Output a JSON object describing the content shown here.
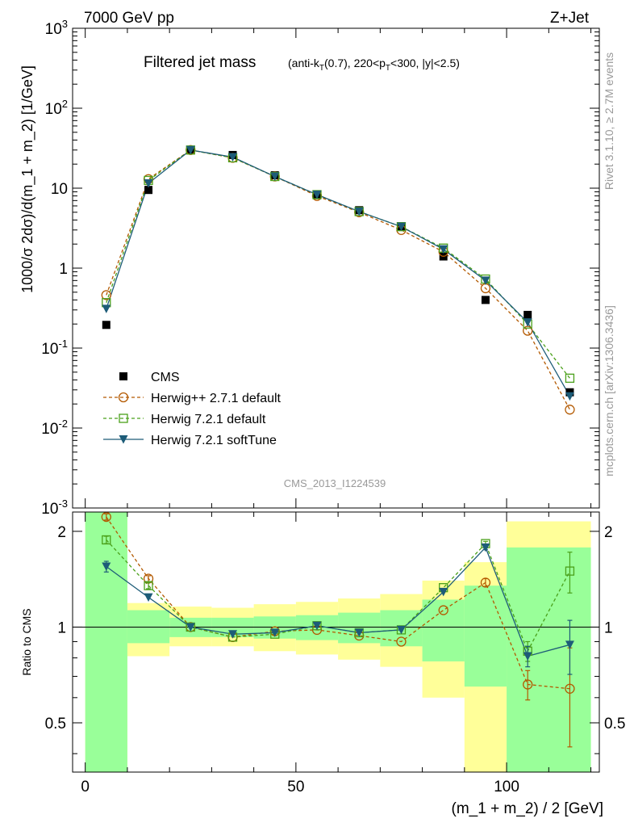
{
  "header": {
    "left": "7000 GeV pp",
    "right": "Z+Jet"
  },
  "title_main": "Filtered jet mass",
  "title_sub_parts": [
    "(anti-k",
    "T",
    "(0.7), 220<p",
    "T",
    "<300, |y|<2.5)"
  ],
  "side_text": {
    "rivet": "Rivet 3.1.10, ≥ 2.7M events",
    "mcplots": "mcplots.cern.ch [arXiv:1306.3436]"
  },
  "analysis_tag": "CMS_2013_I1224539",
  "xlabel": "(m_1 + m_2) / 2 [GeV]",
  "ylabel_top": "1000/σ 2dσ)/d(m_1 + m_2) [1/GeV]",
  "ylabel_bottom": "Ratio to CMS",
  "colors": {
    "cms": "#000000",
    "herwigpp": "#b35900",
    "herwig721": "#4aa01a",
    "softtune": "#1d5c78",
    "band_green": "#99ff99",
    "band_yellow": "#ffff99"
  },
  "top_ticks": {
    "y": [
      "10^3",
      "10^2",
      "10",
      "1",
      "10^-1",
      "10^-2",
      "10^-3"
    ]
  },
  "bottom_ticks": {
    "x": [
      "0",
      "50",
      "100"
    ],
    "y": [
      "2",
      "1",
      "0.5"
    ]
  },
  "chart_data": {
    "type": "line",
    "x": [
      5,
      15,
      25,
      35,
      45,
      55,
      65,
      75,
      85,
      95,
      105,
      115
    ],
    "xlim": [
      -3,
      122
    ],
    "ylim": [
      0.001,
      1000
    ],
    "yscale": "log",
    "legend_position": "bottom-left",
    "series": [
      {
        "name": "CMS",
        "style": "markers",
        "values": [
          0.195,
          9.5,
          30.0,
          26.0,
          14.5,
          8.2,
          5.3,
          3.35,
          1.4,
          0.4,
          0.26,
          0.028
        ]
      },
      {
        "name": "Herwig++ 2.7.1 default",
        "style": "dashed-circle",
        "values": [
          0.46,
          13.0,
          30.0,
          24.0,
          14.0,
          8.0,
          5.0,
          3.0,
          1.6,
          0.56,
          0.165,
          0.017
        ]
      },
      {
        "name": "Herwig 7.2.1 default",
        "style": "dashed-square",
        "values": [
          0.37,
          12.5,
          30.0,
          24.0,
          14.0,
          8.3,
          5.1,
          3.3,
          1.78,
          0.73,
          0.2,
          0.042
        ]
      },
      {
        "name": "Herwig 7.2.1 softTune",
        "style": "solid-triangle",
        "values": [
          0.31,
          11.5,
          30.0,
          24.5,
          14.0,
          8.3,
          5.1,
          3.3,
          1.72,
          0.7,
          0.21,
          0.025
        ]
      }
    ],
    "ratio": {
      "ylabel": "Ratio to CMS",
      "ylim": [
        0.35,
        2.3
      ],
      "yscale": "log",
      "series": [
        {
          "name": "Herwig++ 2.7.1 default",
          "values": [
            2.22,
            1.42,
            1.0,
            0.93,
            0.97,
            0.98,
            0.94,
            0.9,
            1.13,
            1.38,
            0.66,
            0.64
          ],
          "errors": [
            0.05,
            0.03,
            0.01,
            0.01,
            0.01,
            0.01,
            0.01,
            0.01,
            0.02,
            0.04,
            0.07,
            0.22
          ]
        },
        {
          "name": "Herwig 7.2.1 default",
          "values": [
            1.88,
            1.35,
            1.0,
            0.93,
            0.95,
            1.01,
            0.96,
            0.98,
            1.33,
            1.83,
            0.84,
            1.5
          ],
          "errors": [
            0.05,
            0.03,
            0.01,
            0.01,
            0.01,
            0.01,
            0.01,
            0.01,
            0.02,
            0.03,
            0.06,
            0.22
          ]
        },
        {
          "name": "Herwig 7.2.1 softTune",
          "values": [
            1.55,
            1.24,
            1.0,
            0.95,
            0.96,
            1.01,
            0.96,
            0.98,
            1.29,
            1.78,
            0.81,
            0.88
          ],
          "errors": [
            0.06,
            0.02,
            0.01,
            0.01,
            0.01,
            0.01,
            0.01,
            0.01,
            0.02,
            0.03,
            0.06,
            0.17
          ]
        }
      ],
      "bands": [
        {
          "x": [
            0,
            10
          ],
          "green": [
            0.35,
            2.3
          ],
          "yellow": [
            0.35,
            2.3
          ]
        },
        {
          "x": [
            10,
            20
          ],
          "green": [
            0.89,
            1.13
          ],
          "yellow": [
            0.81,
            1.19
          ]
        },
        {
          "x": [
            20,
            30
          ],
          "green": [
            0.93,
            1.07
          ],
          "yellow": [
            0.87,
            1.16
          ]
        },
        {
          "x": [
            30,
            40
          ],
          "green": [
            0.93,
            1.07
          ],
          "yellow": [
            0.87,
            1.15
          ]
        },
        {
          "x": [
            40,
            50
          ],
          "green": [
            0.92,
            1.08
          ],
          "yellow": [
            0.84,
            1.18
          ]
        },
        {
          "x": [
            50,
            60
          ],
          "green": [
            0.91,
            1.09
          ],
          "yellow": [
            0.82,
            1.2
          ]
        },
        {
          "x": [
            60,
            70
          ],
          "green": [
            0.89,
            1.11
          ],
          "yellow": [
            0.79,
            1.23
          ]
        },
        {
          "x": [
            70,
            80
          ],
          "green": [
            0.87,
            1.13
          ],
          "yellow": [
            0.75,
            1.27
          ]
        },
        {
          "x": [
            80,
            90
          ],
          "green": [
            0.78,
            1.22
          ],
          "yellow": [
            0.6,
            1.4
          ]
        },
        {
          "x": [
            90,
            100
          ],
          "green": [
            0.65,
            1.35
          ],
          "yellow": [
            0.35,
            1.6
          ]
        },
        {
          "x": [
            100,
            120
          ],
          "green": [
            0.35,
            1.78
          ],
          "yellow": [
            0.35,
            2.15
          ]
        }
      ]
    }
  }
}
